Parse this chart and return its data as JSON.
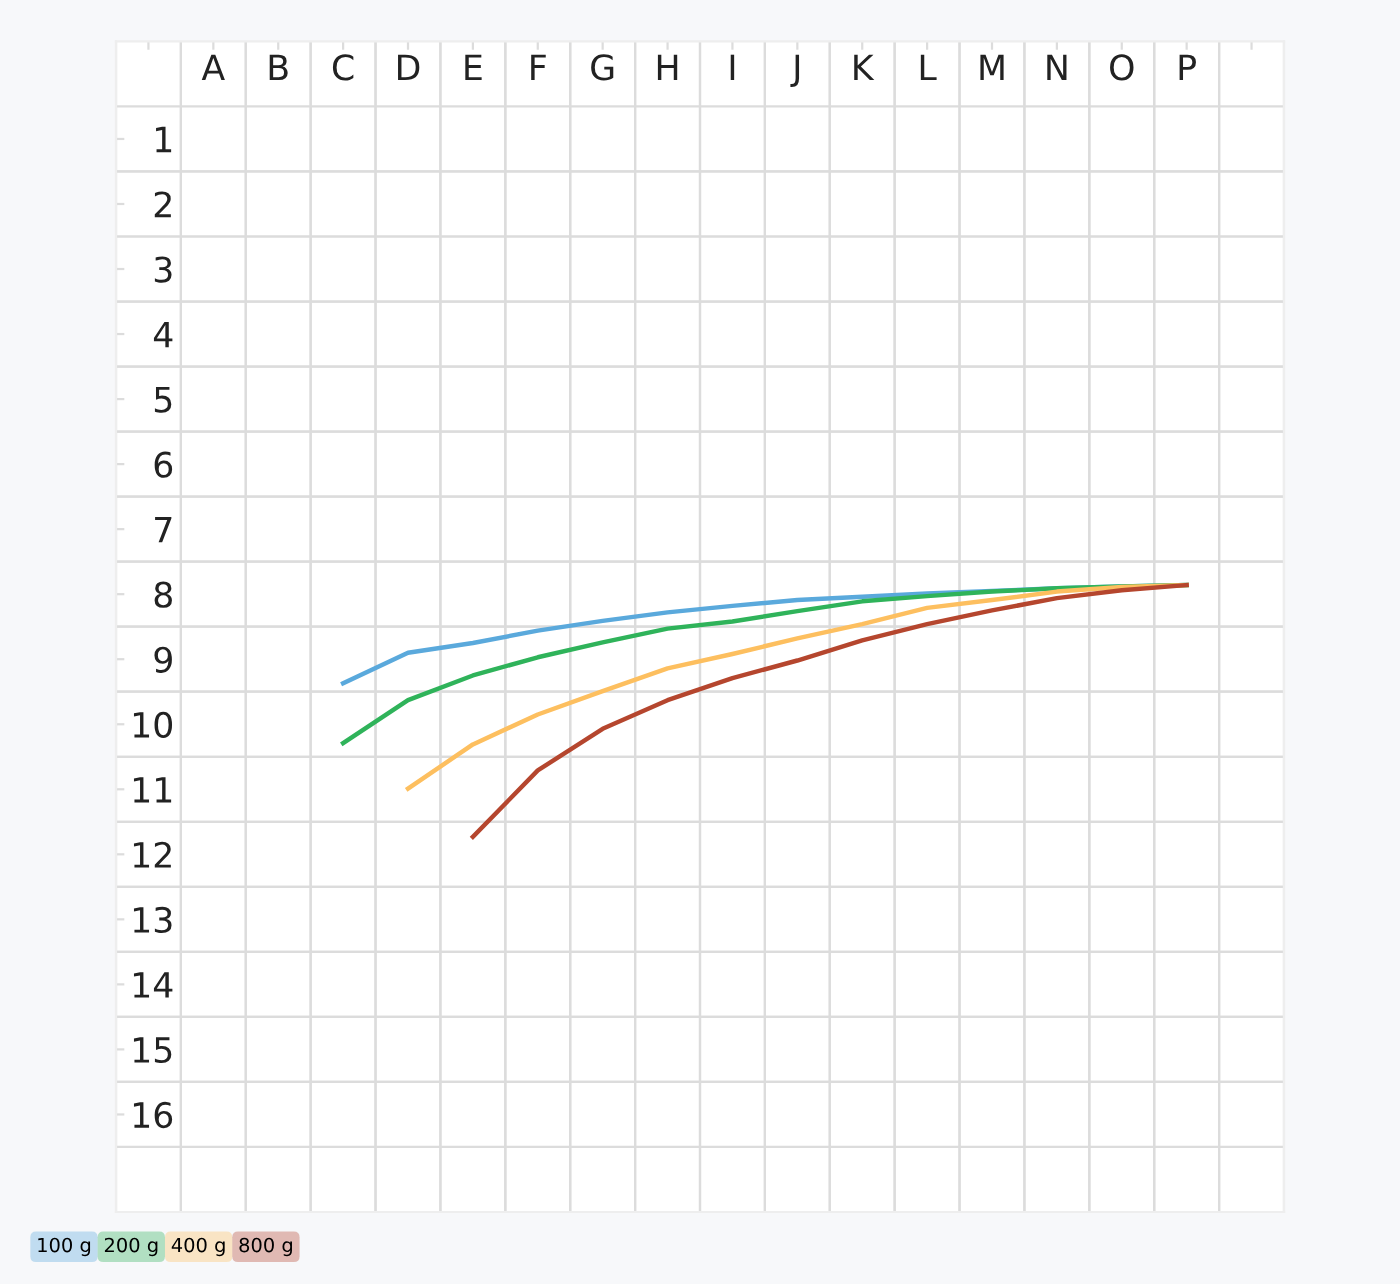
{
  "chart_data": {
    "type": "line",
    "categories": [
      null,
      "A",
      "B",
      "C",
      "D",
      "E",
      "F",
      "G",
      "H",
      "I",
      "J",
      "K",
      "L",
      "M",
      "N",
      "O",
      "P",
      null
    ],
    "ylim": [
      17.5,
      -0.5
    ],
    "yticks": [
      1,
      2,
      3,
      4,
      5,
      6,
      7,
      8,
      9,
      10,
      11,
      12,
      13,
      14,
      15,
      16
    ],
    "grid": true,
    "legend": "bottom left",
    "marker": "none",
    "line_style": "solid",
    "series": [
      {
        "name": "100 g",
        "color": "#5aa9dc",
        "values": [
          null,
          null,
          null,
          9.37,
          8.9,
          8.75,
          8.56,
          8.41,
          8.28,
          8.18,
          8.09,
          8.04,
          7.99,
          7.95,
          7.91,
          7.88,
          7.86,
          null
        ]
      },
      {
        "name": "200 g",
        "color": "#2fb35a",
        "values": [
          null,
          null,
          null,
          10.29,
          9.63,
          9.25,
          8.97,
          8.74,
          8.53,
          8.42,
          8.26,
          8.11,
          8.03,
          7.96,
          7.91,
          7.88,
          7.86,
          null
        ]
      },
      {
        "name": "400 g",
        "color": "#fdbf5f",
        "values": [
          null,
          null,
          null,
          null,
          10.99,
          10.31,
          9.85,
          9.49,
          9.14,
          8.92,
          8.68,
          8.46,
          8.21,
          8.09,
          7.96,
          7.89,
          7.86,
          null
        ]
      },
      {
        "name": "800 g",
        "color": "#b5462e",
        "values": [
          null,
          null,
          null,
          null,
          null,
          11.73,
          10.71,
          10.07,
          9.63,
          9.29,
          9.02,
          8.71,
          8.46,
          8.25,
          8.06,
          7.94,
          7.86,
          null
        ]
      }
    ]
  }
}
